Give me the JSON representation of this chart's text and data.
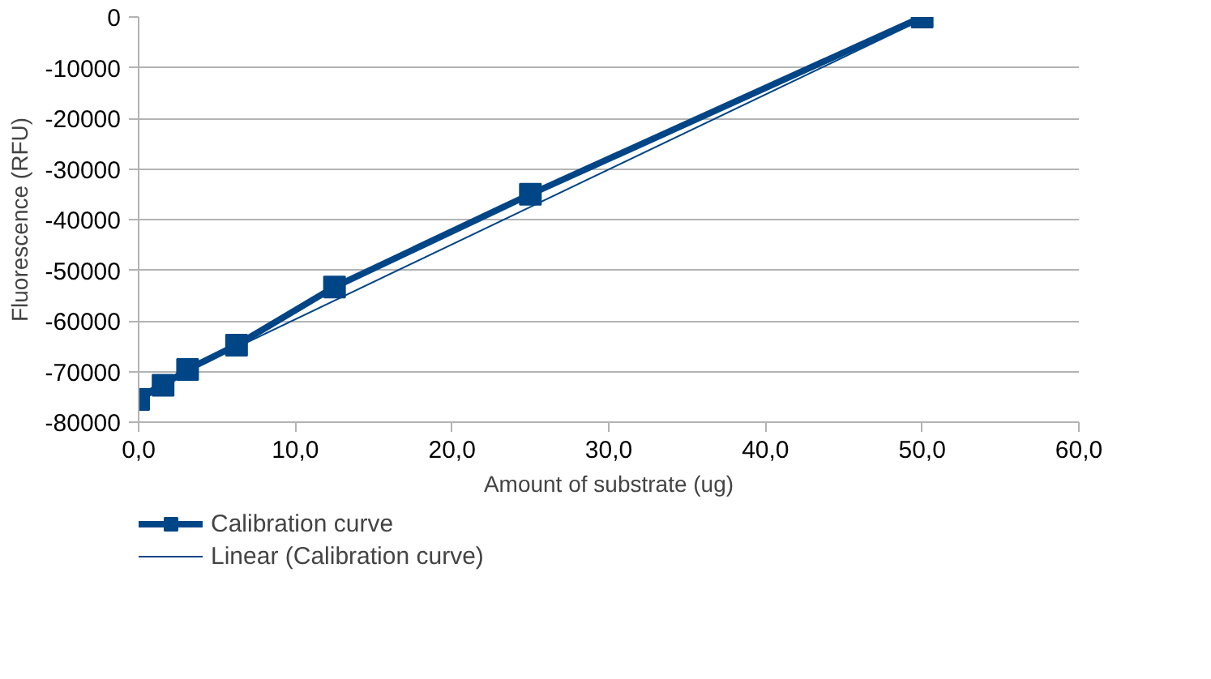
{
  "chart_data": {
    "type": "line",
    "xlabel": "Amount of substrate (ug)",
    "ylabel": "Fluorescence (RFU)",
    "series": [
      {
        "name": "Calibration curve",
        "color": "#004586",
        "x": [
          0,
          1.5625,
          3.125,
          6.25,
          12.5,
          25,
          50
        ],
        "values": [
          -75500,
          -72700,
          -69600,
          -64800,
          -53300,
          -35000,
          0
        ],
        "marker": "square"
      },
      {
        "name": "Linear (Calibration curve)",
        "color": "#004586",
        "x": [
          0,
          50
        ],
        "values": [
          -74500,
          -500
        ],
        "marker": "none"
      }
    ],
    "xlim": [
      0,
      60
    ],
    "xticks": [
      {
        "value": 0,
        "label": "0,0"
      },
      {
        "value": 10,
        "label": "10,0"
      },
      {
        "value": 20,
        "label": "20,0"
      },
      {
        "value": 30,
        "label": "30,0"
      },
      {
        "value": 40,
        "label": "40,0"
      },
      {
        "value": 50,
        "label": "50,0"
      },
      {
        "value": 60,
        "label": "60,0"
      }
    ],
    "ylim": [
      -80000,
      0
    ],
    "yticks": [
      -80000,
      -70000,
      -60000,
      -50000,
      -40000,
      -30000,
      -20000,
      -10000,
      0
    ],
    "grid": "y",
    "legend": "bottom left"
  }
}
